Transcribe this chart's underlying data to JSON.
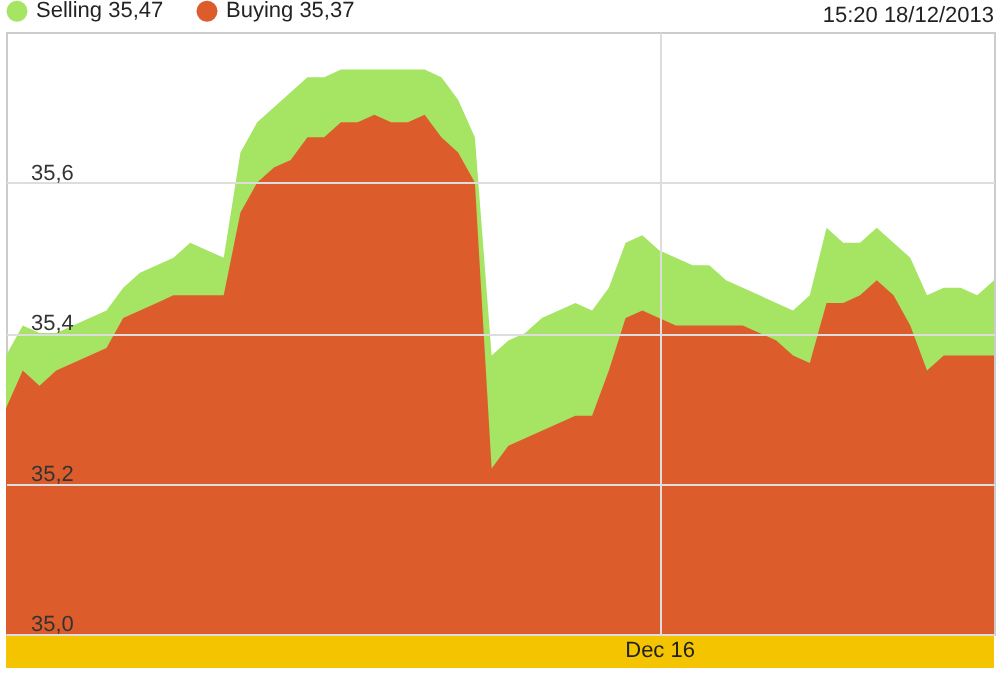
{
  "chart_data": {
    "type": "area",
    "title": "15:20 18/12/2013",
    "categories": [
      null,
      null,
      null,
      null,
      null,
      null,
      null,
      null,
      null,
      null,
      null,
      null,
      null,
      null,
      null,
      null,
      null,
      null,
      null,
      null,
      null,
      null,
      null,
      null,
      null,
      null,
      null,
      null,
      null,
      null,
      null,
      null,
      null,
      null,
      null,
      null,
      null,
      null,
      null,
      "Dec 16",
      null,
      null,
      null,
      null,
      null,
      null,
      null,
      null,
      null,
      null,
      null,
      null,
      null,
      null,
      null,
      null,
      null,
      null,
      null,
      null
    ],
    "series": [
      {
        "name": "Selling 35,47",
        "color": "#a6e463",
        "values": [
          35.37,
          35.41,
          35.4,
          35.4,
          35.41,
          35.42,
          35.43,
          35.46,
          35.48,
          35.49,
          35.5,
          35.52,
          35.51,
          35.5,
          35.64,
          35.68,
          35.7,
          35.72,
          35.74,
          35.74,
          35.75,
          35.75,
          35.75,
          35.75,
          35.75,
          35.75,
          35.74,
          35.71,
          35.66,
          35.37,
          35.39,
          35.4,
          35.42,
          35.43,
          35.44,
          35.43,
          35.46,
          35.52,
          35.53,
          35.51,
          35.5,
          35.49,
          35.49,
          35.47,
          35.46,
          35.45,
          35.44,
          35.43,
          35.45,
          35.54,
          35.52,
          35.52,
          35.54,
          35.52,
          35.5,
          35.45,
          35.46,
          35.46,
          35.45,
          35.47
        ]
      },
      {
        "name": "Buying 35,37",
        "color": "#dc5d2b",
        "values": [
          35.3,
          35.35,
          35.33,
          35.35,
          35.36,
          35.37,
          35.38,
          35.42,
          35.43,
          35.44,
          35.45,
          35.45,
          35.45,
          35.45,
          35.56,
          35.6,
          35.62,
          35.63,
          35.66,
          35.66,
          35.68,
          35.68,
          35.69,
          35.68,
          35.68,
          35.69,
          35.66,
          35.64,
          35.6,
          35.22,
          35.25,
          35.26,
          35.27,
          35.28,
          35.29,
          35.29,
          35.35,
          35.42,
          35.43,
          35.42,
          35.41,
          35.41,
          35.41,
          35.41,
          35.41,
          35.4,
          35.39,
          35.37,
          35.36,
          35.44,
          35.44,
          35.45,
          35.47,
          35.45,
          35.41,
          35.35,
          35.37,
          35.37,
          35.37,
          35.37
        ]
      }
    ],
    "ylim": [
      35.0,
      35.8
    ],
    "yticks": [
      {
        "value": 35.0,
        "label": "35,0"
      },
      {
        "value": 35.2,
        "label": "35,2"
      },
      {
        "value": 35.4,
        "label": "35,4"
      },
      {
        "value": 35.6,
        "label": "35,6"
      }
    ],
    "grid": true,
    "legend": "top left"
  }
}
